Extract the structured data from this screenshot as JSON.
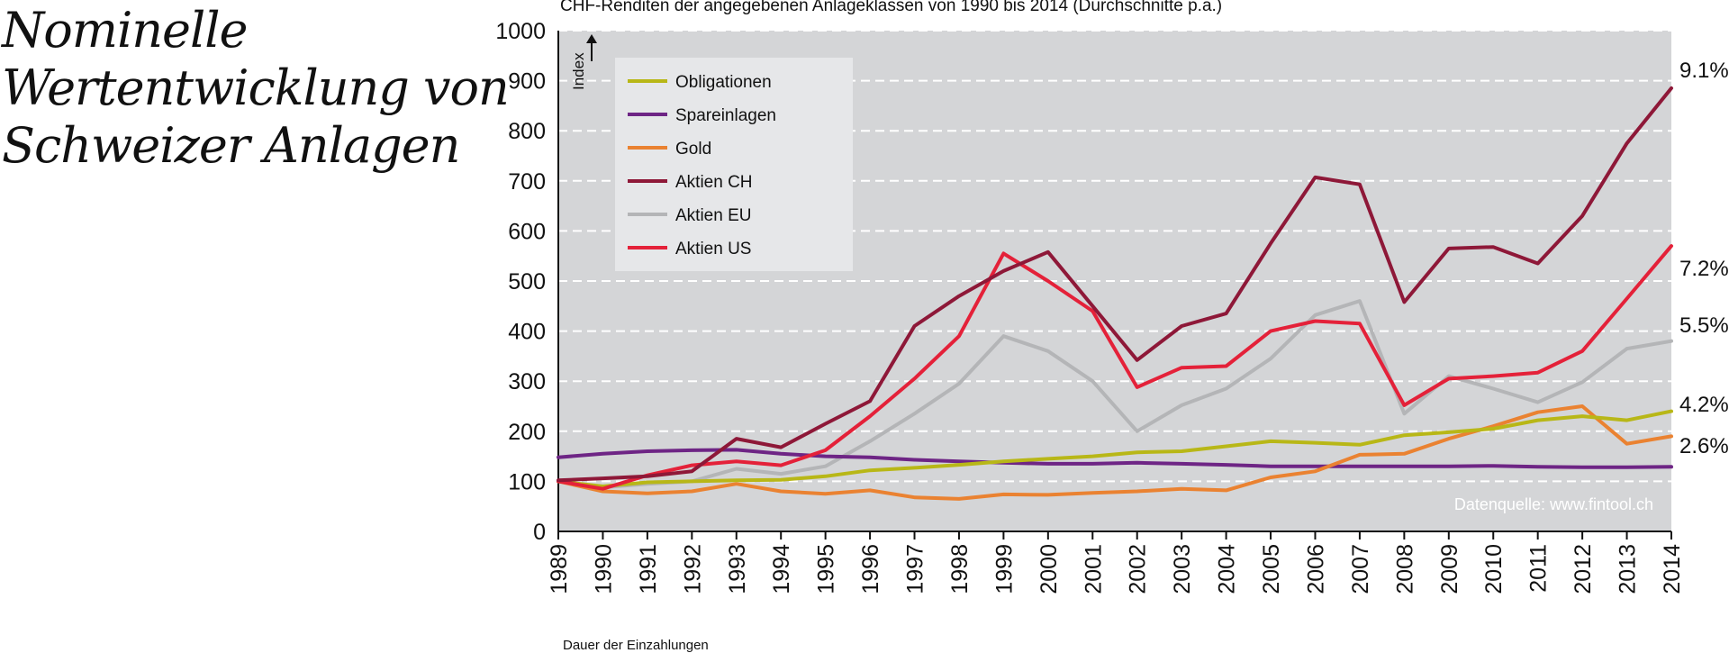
{
  "title": {
    "lines": [
      "Nominelle",
      "Wertentwicklung von",
      "Schweizer Anlagen"
    ]
  },
  "footer_note": "Dauer der Einzahlungen",
  "colors": {
    "plot_background": "#d4d5d7",
    "legend_background": "#e6e7e9",
    "grid": "#ffffff"
  },
  "chart_data": {
    "type": "line",
    "title": "CHF-Renditen der angegebenen Anlageklassen von 1990 bis 2014 (Durchschnitte p.a.)",
    "ylabel": "Index",
    "xlabel": "",
    "xlim": [
      1989,
      2014
    ],
    "ylim": [
      0,
      1000
    ],
    "x_ticks": [
      "1989",
      "1990",
      "1991",
      "1992",
      "1993",
      "1994",
      "1995",
      "1996",
      "1997",
      "1998",
      "1999",
      "2000",
      "2001",
      "2002",
      "2003",
      "2004",
      "2005",
      "2006",
      "2007",
      "2008",
      "2009",
      "2010",
      "2011",
      "2012",
      "2013",
      "2014"
    ],
    "y_ticks": [
      "0",
      "100",
      "200",
      "300",
      "400",
      "500",
      "600",
      "700",
      "800",
      "900",
      "1000"
    ],
    "grid": "horizontal dashed",
    "legend_position": "top-left",
    "source": "Datenquelle: www.fintool.ch",
    "series": [
      {
        "name": "Obligationen",
        "color": "#b8b717",
        "end_label": "4.2%",
        "points": [
          [
            1989,
            100
          ],
          [
            1990,
            90
          ],
          [
            1991,
            98
          ],
          [
            1992,
            100
          ],
          [
            1993,
            102
          ],
          [
            1994,
            103
          ],
          [
            1995,
            110
          ],
          [
            1996,
            122
          ],
          [
            1997,
            127
          ],
          [
            1998,
            133
          ],
          [
            1999,
            140
          ],
          [
            2000,
            145
          ],
          [
            2001,
            150
          ],
          [
            2002,
            158
          ],
          [
            2003,
            160
          ],
          [
            2004,
            170
          ],
          [
            2005,
            180
          ],
          [
            2006,
            177
          ],
          [
            2007,
            173
          ],
          [
            2008,
            192
          ],
          [
            2009,
            198
          ],
          [
            2010,
            205
          ],
          [
            2011,
            222
          ],
          [
            2012,
            230
          ],
          [
            2013,
            222
          ],
          [
            2014,
            240
          ]
        ]
      },
      {
        "name": "Spareinlagen",
        "color": "#6e2585",
        "end_label": "",
        "points": [
          [
            1989,
            148
          ],
          [
            1990,
            155
          ],
          [
            1991,
            160
          ],
          [
            1992,
            162
          ],
          [
            1993,
            163
          ],
          [
            1994,
            155
          ],
          [
            1995,
            150
          ],
          [
            1996,
            148
          ],
          [
            1997,
            143
          ],
          [
            1998,
            140
          ],
          [
            1999,
            137
          ],
          [
            2000,
            135
          ],
          [
            2001,
            135
          ],
          [
            2002,
            137
          ],
          [
            2003,
            135
          ],
          [
            2004,
            133
          ],
          [
            2005,
            130
          ],
          [
            2006,
            130
          ],
          [
            2007,
            130
          ],
          [
            2008,
            130
          ],
          [
            2009,
            130
          ],
          [
            2010,
            131
          ],
          [
            2011,
            129
          ],
          [
            2012,
            128
          ],
          [
            2013,
            128
          ],
          [
            2014,
            129
          ]
        ]
      },
      {
        "name": "Gold",
        "color": "#ea8231",
        "end_label": "2.6%",
        "points": [
          [
            1989,
            100
          ],
          [
            1990,
            80
          ],
          [
            1991,
            76
          ],
          [
            1992,
            80
          ],
          [
            1993,
            95
          ],
          [
            1994,
            80
          ],
          [
            1995,
            75
          ],
          [
            1996,
            82
          ],
          [
            1997,
            68
          ],
          [
            1998,
            65
          ],
          [
            1999,
            74
          ],
          [
            2000,
            73
          ],
          [
            2001,
            77
          ],
          [
            2002,
            80
          ],
          [
            2003,
            85
          ],
          [
            2004,
            82
          ],
          [
            2005,
            108
          ],
          [
            2006,
            120
          ],
          [
            2007,
            153
          ],
          [
            2008,
            155
          ],
          [
            2009,
            185
          ],
          [
            2010,
            210
          ],
          [
            2011,
            238
          ],
          [
            2012,
            250
          ],
          [
            2013,
            175
          ],
          [
            2014,
            190
          ]
        ]
      },
      {
        "name": "Aktien CH",
        "color": "#8e1838",
        "end_label": "9.1%",
        "points": [
          [
            1989,
            102
          ],
          [
            1990,
            106
          ],
          [
            1991,
            110
          ],
          [
            1992,
            120
          ],
          [
            1993,
            185
          ],
          [
            1994,
            168
          ],
          [
            1995,
            215
          ],
          [
            1996,
            260
          ],
          [
            1997,
            410
          ],
          [
            1998,
            470
          ],
          [
            1999,
            520
          ],
          [
            2000,
            558
          ],
          [
            2001,
            450
          ],
          [
            2002,
            342
          ],
          [
            2003,
            410
          ],
          [
            2004,
            435
          ],
          [
            2005,
            575
          ],
          [
            2006,
            707
          ],
          [
            2007,
            693
          ],
          [
            2008,
            458
          ],
          [
            2009,
            565
          ],
          [
            2010,
            568
          ],
          [
            2011,
            535
          ],
          [
            2012,
            630
          ],
          [
            2013,
            775
          ],
          [
            2014,
            885
          ]
        ]
      },
      {
        "name": "Aktien EU",
        "color": "#b4b5b7",
        "end_label": "5.5%",
        "points": [
          [
            1989,
            100
          ],
          [
            1990,
            88
          ],
          [
            1991,
            95
          ],
          [
            1992,
            100
          ],
          [
            1993,
            125
          ],
          [
            1994,
            115
          ],
          [
            1995,
            130
          ],
          [
            1996,
            180
          ],
          [
            1997,
            235
          ],
          [
            1998,
            295
          ],
          [
            1999,
            390
          ],
          [
            2000,
            360
          ],
          [
            2001,
            300
          ],
          [
            2002,
            200
          ],
          [
            2003,
            252
          ],
          [
            2004,
            285
          ],
          [
            2005,
            345
          ],
          [
            2006,
            432
          ],
          [
            2007,
            460
          ],
          [
            2008,
            235
          ],
          [
            2009,
            310
          ],
          [
            2010,
            285
          ],
          [
            2011,
            258
          ],
          [
            2012,
            298
          ],
          [
            2013,
            365
          ],
          [
            2014,
            380
          ]
        ]
      },
      {
        "name": "Aktien US",
        "color": "#e42139",
        "end_label": "7.2%",
        "points": [
          [
            1989,
            100
          ],
          [
            1990,
            85
          ],
          [
            1991,
            112
          ],
          [
            1992,
            132
          ],
          [
            1993,
            140
          ],
          [
            1994,
            132
          ],
          [
            1995,
            162
          ],
          [
            1996,
            230
          ],
          [
            1997,
            305
          ],
          [
            1998,
            390
          ],
          [
            1999,
            555
          ],
          [
            2000,
            500
          ],
          [
            2001,
            440
          ],
          [
            2002,
            288
          ],
          [
            2003,
            327
          ],
          [
            2004,
            330
          ],
          [
            2005,
            400
          ],
          [
            2006,
            420
          ],
          [
            2007,
            415
          ],
          [
            2008,
            252
          ],
          [
            2009,
            305
          ],
          [
            2010,
            310
          ],
          [
            2011,
            317
          ],
          [
            2012,
            360
          ],
          [
            2013,
            465
          ],
          [
            2014,
            570
          ]
        ]
      }
    ]
  }
}
